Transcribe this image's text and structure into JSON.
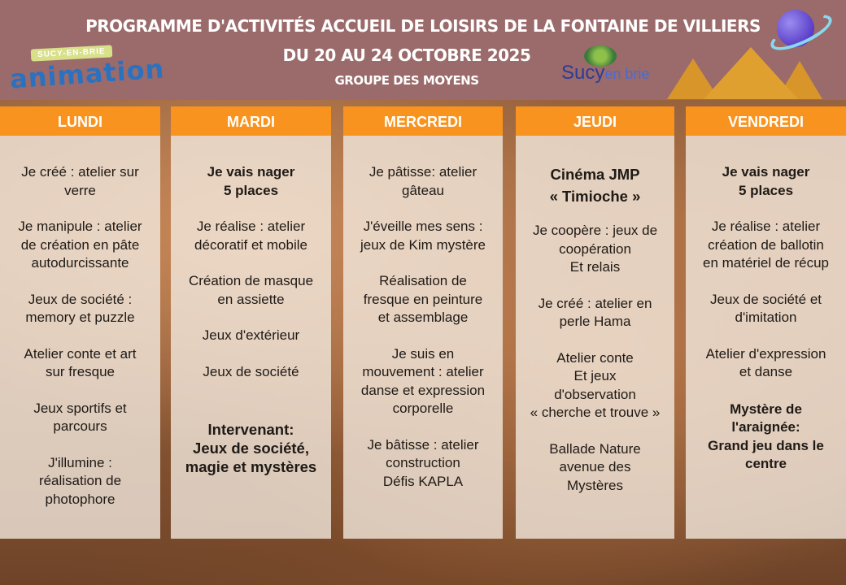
{
  "header": {
    "title": "Programme d'activités Accueil de loisirs de la Fontaine de Villiers",
    "dates": "Du 20 au 24 octobre 2025",
    "group": "Groupe des moyens"
  },
  "logos": {
    "animation_sub": "SUCY-EN-BRIE",
    "animation_main": "animation",
    "sucy_main": "Sucy",
    "sucy_sub": "en brie"
  },
  "colors": {
    "banner": "#9b6a6a",
    "day_header": "#f7931e"
  },
  "days": [
    {
      "label": "LUNDI",
      "items": [
        {
          "text": "Je créé : atelier sur\nverre"
        },
        {
          "text": "Je manipule : atelier\nde création en pâte\nautodurcissante"
        },
        {
          "text": "Jeux de société :\nmemory et puzzle"
        },
        {
          "text": "Atelier conte et art\nsur fresque"
        },
        {
          "text": "Jeux sportifs et\nparcours"
        },
        {
          "text": "J'illumine :\nréalisation de\nphotophore"
        }
      ]
    },
    {
      "label": "MARDI",
      "items": [
        {
          "text": "Je vais nager\n5 places",
          "bold": true
        },
        {
          "text": "Je réalise : atelier\ndécoratif et mobile"
        },
        {
          "text": "Création de masque\nen assiette"
        },
        {
          "text": "Jeux d'extérieur"
        },
        {
          "text": "Jeux de société"
        },
        {
          "text": "Intervenant:\nJeux de société,\nmagie et mystères",
          "bold": true,
          "style": "big2 gap"
        }
      ]
    },
    {
      "label": "MERCREDI",
      "items": [
        {
          "text": "Je pâtisse: atelier\ngâteau"
        },
        {
          "text": "J'éveille mes sens :\njeux de Kim mystère"
        },
        {
          "text": "Réalisation de\nfresque en peinture\net assemblage"
        },
        {
          "text": "Je suis en\nmouvement : atelier\ndanse et expression\ncorporelle"
        },
        {
          "text": "Je bâtisse : atelier\nconstruction\nDéfis KAPLA"
        }
      ]
    },
    {
      "label": "JEUDI",
      "items": [
        {
          "text": "Cinéma JMP\n« Timioche »",
          "bold": true,
          "style": "big"
        },
        {
          "text": "Je coopère : jeux de\ncoopération\nEt relais"
        },
        {
          "text": "Je créé : atelier en\nperle Hama"
        },
        {
          "text": "Atelier conte\nEt jeux\nd'observation\n« cherche et trouve »"
        },
        {
          "text": "Ballade Nature\navenue des\nMystères"
        }
      ]
    },
    {
      "label": "VENDREDI",
      "items": [
        {
          "text": "Je vais nager\n5 places",
          "bold": true
        },
        {
          "text": "Je réalise : atelier\ncréation de ballotin\nen matériel de récup"
        },
        {
          "text": "Jeux de société et\nd'imitation"
        },
        {
          "text": "Atelier d'expression\net danse"
        },
        {
          "text": "Mystère de\nl'araignée:\nGrand jeu dans le\ncentre",
          "bold": true,
          "style": "gap2"
        }
      ]
    }
  ]
}
